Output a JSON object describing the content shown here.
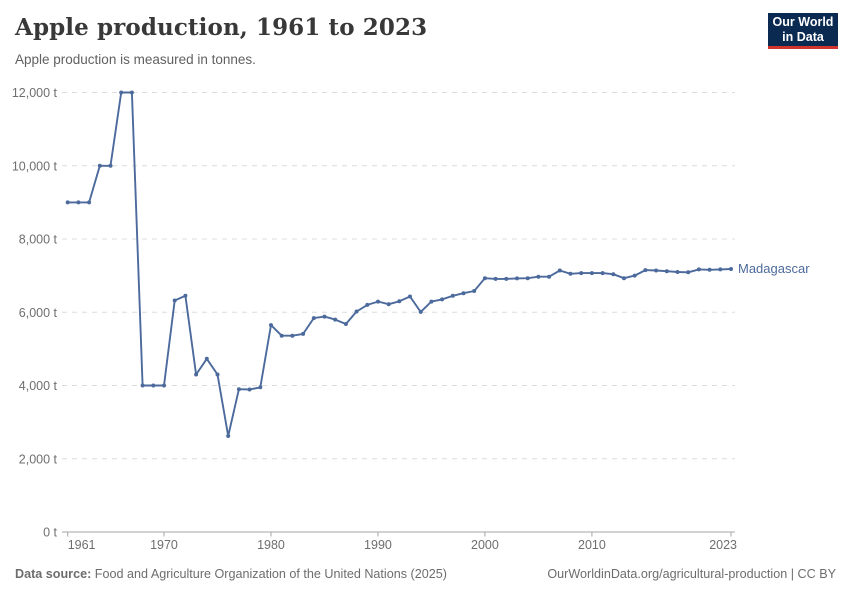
{
  "header": {
    "title": "Apple production, 1961 to 2023",
    "subtitle": "Apple production is measured in tonnes.",
    "logo": {
      "line1": "Our World",
      "line2": "in Data",
      "bg_color": "#0b2a52",
      "accent_color": "#d0342c"
    }
  },
  "chart_data": {
    "type": "line",
    "title": "Apple production, 1961 to 2023",
    "unit": "tonnes",
    "grid": "horizontal-dashed",
    "legend_position": "end-of-line-label",
    "ylim": [
      0,
      12000
    ],
    "yticks": [
      0,
      2000,
      4000,
      6000,
      8000,
      10000,
      12000
    ],
    "ytick_labels": [
      "0 t",
      "2,000 t",
      "4,000 t",
      "6,000 t",
      "8,000 t",
      "10,000 t",
      "12,000 t"
    ],
    "xlim": [
      1961,
      2023
    ],
    "xticks": [
      1961,
      1970,
      1980,
      1990,
      2000,
      2010,
      2023
    ],
    "colors": {
      "grid": "#dcdcdc",
      "axis": "#a5a5a5",
      "tick_text": "#6e6e6e"
    },
    "series": [
      {
        "name": "Madagascar",
        "color": "#4c6a9c",
        "x": [
          1961,
          1962,
          1963,
          1964,
          1965,
          1966,
          1967,
          1968,
          1969,
          1970,
          1971,
          1972,
          1973,
          1974,
          1975,
          1976,
          1977,
          1978,
          1979,
          1980,
          1981,
          1982,
          1983,
          1984,
          1985,
          1986,
          1987,
          1988,
          1989,
          1990,
          1991,
          1992,
          1993,
          1994,
          1995,
          1996,
          1997,
          1998,
          1999,
          2000,
          2001,
          2002,
          2003,
          2004,
          2005,
          2006,
          2007,
          2008,
          2009,
          2010,
          2011,
          2012,
          2013,
          2014,
          2015,
          2016,
          2017,
          2018,
          2019,
          2020,
          2021,
          2022,
          2023
        ],
        "values": [
          9000,
          9000,
          9000,
          10000,
          10000,
          12000,
          12000,
          4000,
          4000,
          4000,
          6320,
          6450,
          4300,
          4730,
          4300,
          2620,
          3900,
          3890,
          3950,
          5650,
          5360,
          5360,
          5410,
          5840,
          5880,
          5800,
          5680,
          6020,
          6200,
          6290,
          6220,
          6300,
          6430,
          6010,
          6290,
          6350,
          6450,
          6520,
          6580,
          6930,
          6910,
          6910,
          6925,
          6930,
          6970,
          6970,
          7140,
          7050,
          7070,
          7070,
          7070,
          7040,
          6930,
          7000,
          7150,
          7140,
          7120,
          7100,
          7090,
          7170,
          7160,
          7170,
          7180
        ]
      }
    ]
  },
  "footer": {
    "source_label": "Data source:",
    "source_text": " Food and Agriculture Organization of the United Nations (2025)",
    "link_text": "OurWorldinData.org/agricultural-production | CC BY"
  }
}
